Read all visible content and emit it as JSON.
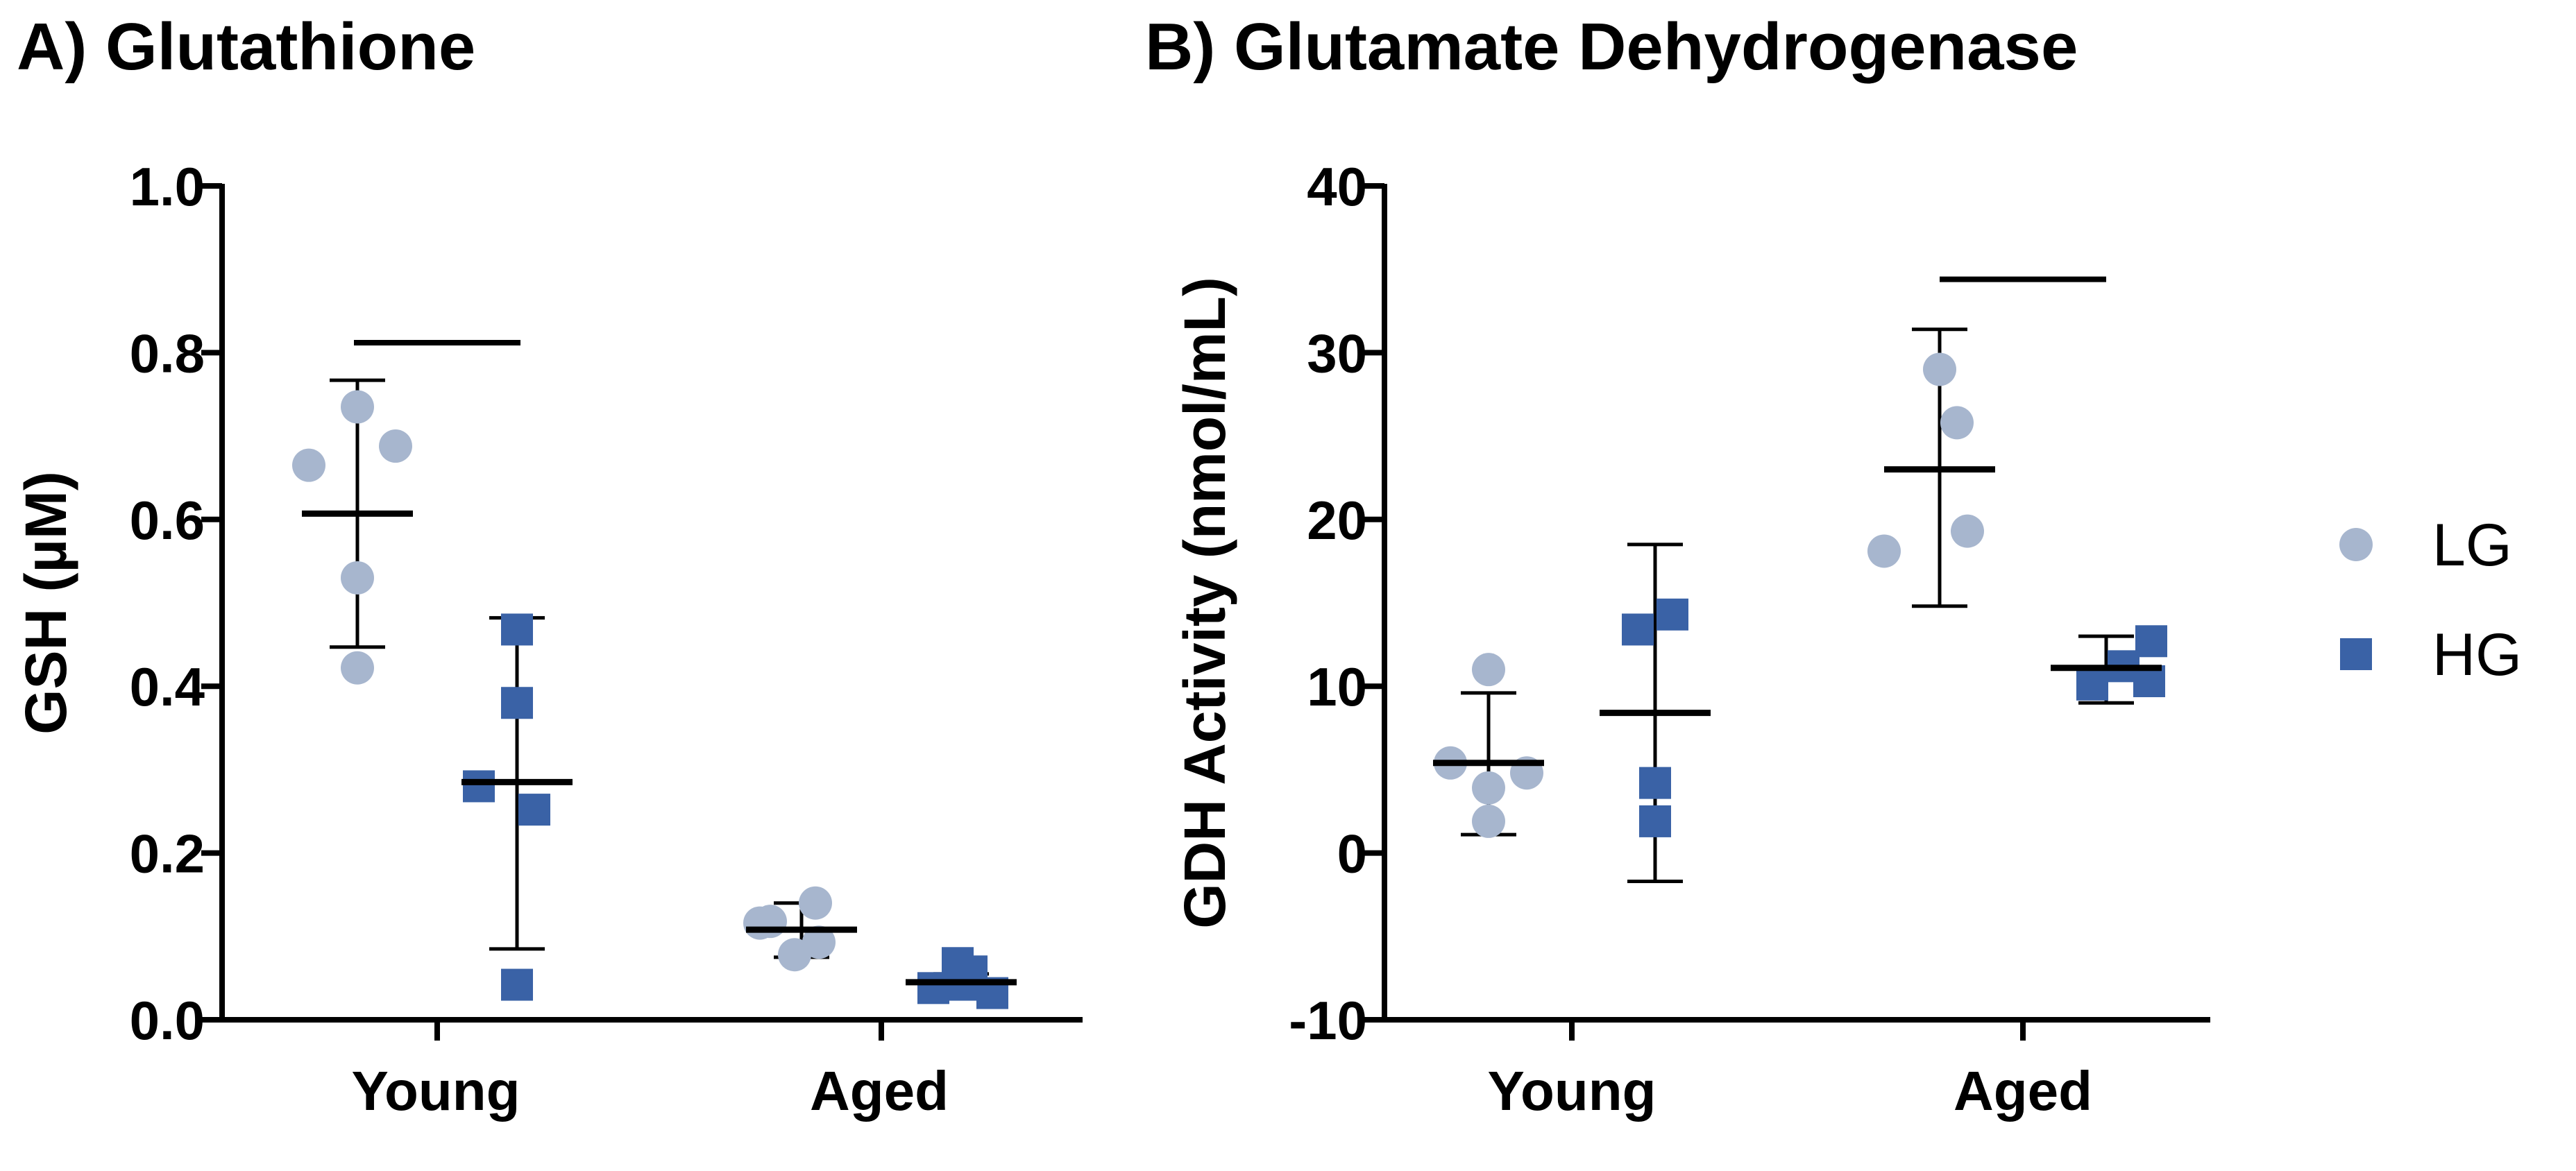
{
  "colors": {
    "LG": "#a7b6ce",
    "HG": "#3a62a6",
    "axis": "#000000"
  },
  "legend": {
    "items": [
      {
        "key": "LG",
        "label": "LG",
        "marker": "circle"
      },
      {
        "key": "HG",
        "label": "HG",
        "marker": "square"
      }
    ],
    "placement": "right"
  },
  "chart_data": [
    {
      "type": "scatter",
      "id": "A",
      "title": "A) Glutathione",
      "ylabel": "GSH (µM)",
      "ylim": [
        0,
        1.0
      ],
      "yticks": [
        0.0,
        0.2,
        0.4,
        0.6,
        0.8,
        1.0
      ],
      "yticklabels": [
        "0.0",
        "0.2",
        "0.4",
        "0.6",
        "0.8",
        "1.0"
      ],
      "categories": [
        "Young",
        "Aged"
      ],
      "series": [
        {
          "name": "LG",
          "groups": [
            {
              "category": "Young",
              "points": [
                0.665,
                0.735,
                0.688,
                0.53,
                0.422
              ],
              "mean": 0.607,
              "sd_low": 0.447,
              "sd_high": 0.767
            },
            {
              "category": "Aged",
              "points": [
                0.118,
                0.078,
                0.116,
                0.093,
                0.14
              ],
              "mean": 0.108,
              "sd_low": 0.075,
              "sd_high": 0.14
            }
          ]
        },
        {
          "name": "HG",
          "groups": [
            {
              "category": "Young",
              "points": [
                0.28,
                0.468,
                0.38,
                0.252,
                0.042
              ],
              "mean": 0.285,
              "sd_low": 0.085,
              "sd_high": 0.482
            },
            {
              "category": "Aged",
              "points": [
                0.038,
                0.068,
                0.042,
                0.058,
                0.032
              ],
              "mean": 0.045,
              "sd_low": 0.035,
              "sd_high": 0.055
            }
          ]
        }
      ],
      "significance": [
        {
          "category": "Young",
          "y": 0.812
        }
      ]
    },
    {
      "type": "scatter",
      "id": "B",
      "title": "B) Glutamate Dehydrogenase",
      "ylabel": "GDH Activity (nmol/mL)",
      "ylim": [
        -10,
        40
      ],
      "yticks": [
        -10,
        0,
        10,
        20,
        30,
        40
      ],
      "yticklabels": [
        "-10",
        "0",
        "10",
        "20",
        "30",
        "40"
      ],
      "categories": [
        "Young",
        "Aged"
      ],
      "series": [
        {
          "name": "LG",
          "groups": [
            {
              "category": "Young",
              "points": [
                5.4,
                11.0,
                3.9,
                1.9,
                4.8
              ],
              "mean": 5.4,
              "sd_low": 1.1,
              "sd_high": 9.6
            },
            {
              "category": "Aged",
              "points": [
                18.1,
                29.0,
                25.8,
                19.3
              ],
              "mean": 23.0,
              "sd_low": 14.8,
              "sd_high": 31.4
            }
          ]
        },
        {
          "name": "HG",
          "groups": [
            {
              "category": "Young",
              "points": [
                13.4,
                14.3,
                4.2,
                1.9
              ],
              "mean": 8.4,
              "sd_low": -1.7,
              "sd_high": 18.5
            },
            {
              "category": "Aged",
              "points": [
                10.1,
                11.2,
                12.7,
                10.3
              ],
              "mean": 11.1,
              "sd_low": 9.0,
              "sd_high": 13.0
            }
          ]
        }
      ],
      "significance": [
        {
          "category": "Aged",
          "y": 34.4
        }
      ]
    }
  ]
}
